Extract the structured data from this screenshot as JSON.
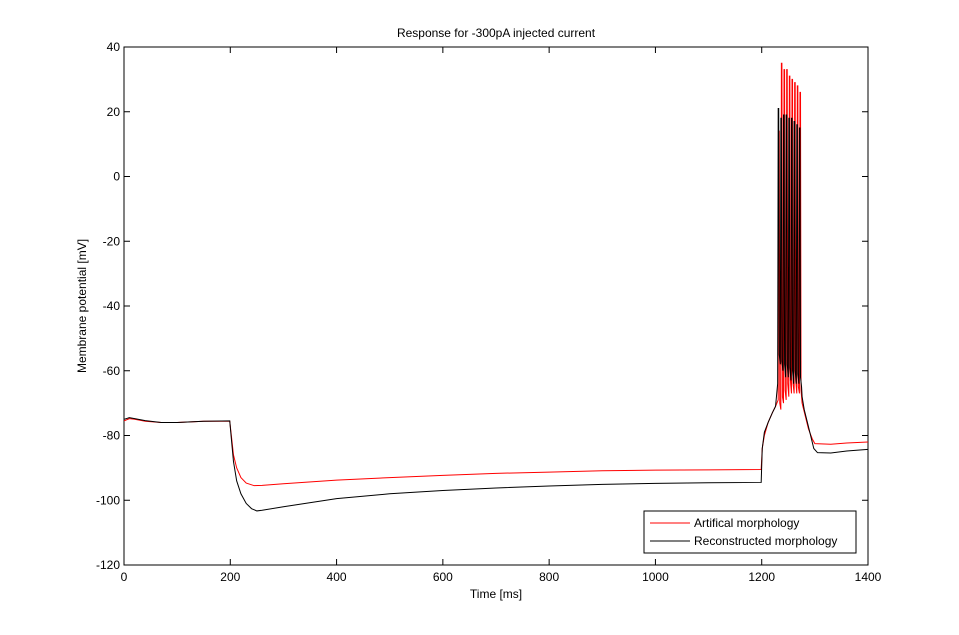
{
  "chart_data": {
    "type": "line",
    "title": "Response for -300pA injected current",
    "xlabel": "Time [ms]",
    "ylabel": "Membrane potential [mV]",
    "xlim": [
      0,
      1400
    ],
    "ylim": [
      -120,
      40
    ],
    "xticks": [
      0,
      200,
      400,
      600,
      800,
      1000,
      1200,
      1400
    ],
    "yticks": [
      -120,
      -100,
      -80,
      -60,
      -40,
      -20,
      0,
      20,
      40
    ],
    "grid": false,
    "legend_position": "bottom-right",
    "series": [
      {
        "name": "Artifical morphology",
        "color": "#ff0000",
        "points": [
          [
            0,
            -75.5
          ],
          [
            10,
            -74.8
          ],
          [
            20,
            -75.0
          ],
          [
            40,
            -75.6
          ],
          [
            70,
            -76.0
          ],
          [
            100,
            -76.0
          ],
          [
            150,
            -75.6
          ],
          [
            199,
            -75.6
          ],
          [
            202,
            -80
          ],
          [
            206,
            -86
          ],
          [
            212,
            -90
          ],
          [
            220,
            -93
          ],
          [
            230,
            -94.7
          ],
          [
            245,
            -95.5
          ],
          [
            260,
            -95.4
          ],
          [
            300,
            -94.9
          ],
          [
            400,
            -93.8
          ],
          [
            500,
            -93.0
          ],
          [
            600,
            -92.3
          ],
          [
            700,
            -91.7
          ],
          [
            800,
            -91.3
          ],
          [
            900,
            -90.9
          ],
          [
            1000,
            -90.7
          ],
          [
            1100,
            -90.6
          ],
          [
            1199,
            -90.5
          ],
          [
            1201,
            -84
          ],
          [
            1205,
            -80
          ],
          [
            1212,
            -76
          ],
          [
            1220,
            -73
          ],
          [
            1226,
            -71
          ],
          [
            1231,
            -69
          ],
          [
            1232,
            14
          ],
          [
            1233,
            14
          ],
          [
            1234,
            -70
          ],
          [
            1236,
            -72
          ],
          [
            1237,
            35
          ],
          [
            1238,
            35
          ],
          [
            1239,
            -68
          ],
          [
            1241,
            -70
          ],
          [
            1242,
            33
          ],
          [
            1243,
            33
          ],
          [
            1244,
            -66
          ],
          [
            1246,
            -69
          ],
          [
            1247,
            33
          ],
          [
            1248,
            33
          ],
          [
            1249,
            -64
          ],
          [
            1251,
            -68
          ],
          [
            1252,
            31
          ],
          [
            1253,
            31
          ],
          [
            1254,
            -63
          ],
          [
            1256,
            -67
          ],
          [
            1257,
            30
          ],
          [
            1258,
            30
          ],
          [
            1259,
            -64
          ],
          [
            1261,
            -67
          ],
          [
            1262,
            29
          ],
          [
            1263,
            29
          ],
          [
            1264,
            -63
          ],
          [
            1266,
            -67
          ],
          [
            1267,
            28
          ],
          [
            1268,
            28
          ],
          [
            1269,
            -65
          ],
          [
            1271,
            -67
          ],
          [
            1272,
            26
          ],
          [
            1273,
            26
          ],
          [
            1274,
            -66
          ],
          [
            1276,
            -70
          ],
          [
            1282,
            -74
          ],
          [
            1288,
            -78
          ],
          [
            1295,
            -81
          ],
          [
            1300,
            -82.5
          ],
          [
            1330,
            -82.7
          ],
          [
            1360,
            -82.3
          ],
          [
            1400,
            -82.0
          ]
        ]
      },
      {
        "name": "Reconstructed morphology",
        "color": "#000000",
        "points": [
          [
            0,
            -75.0
          ],
          [
            10,
            -74.5
          ],
          [
            20,
            -74.8
          ],
          [
            40,
            -75.4
          ],
          [
            70,
            -76.0
          ],
          [
            100,
            -76.0
          ],
          [
            150,
            -75.6
          ],
          [
            199,
            -75.5
          ],
          [
            202,
            -81
          ],
          [
            206,
            -88
          ],
          [
            212,
            -94
          ],
          [
            220,
            -98
          ],
          [
            230,
            -101
          ],
          [
            240,
            -102.6
          ],
          [
            250,
            -103.3
          ],
          [
            260,
            -103.1
          ],
          [
            300,
            -102.0
          ],
          [
            400,
            -99.5
          ],
          [
            500,
            -98.0
          ],
          [
            600,
            -97.0
          ],
          [
            700,
            -96.2
          ],
          [
            800,
            -95.6
          ],
          [
            900,
            -95.1
          ],
          [
            1000,
            -94.8
          ],
          [
            1100,
            -94.6
          ],
          [
            1199,
            -94.5
          ],
          [
            1201,
            -84
          ],
          [
            1205,
            -79
          ],
          [
            1212,
            -76
          ],
          [
            1220,
            -73
          ],
          [
            1226,
            -71
          ],
          [
            1230,
            -64
          ],
          [
            1231,
            21
          ],
          [
            1232,
            21
          ],
          [
            1233,
            -55
          ],
          [
            1235,
            -58
          ],
          [
            1236,
            18
          ],
          [
            1237,
            18
          ],
          [
            1238,
            -57
          ],
          [
            1240,
            -60
          ],
          [
            1241,
            19
          ],
          [
            1242,
            19
          ],
          [
            1243,
            -58
          ],
          [
            1245,
            -62
          ],
          [
            1246,
            19
          ],
          [
            1247,
            19
          ],
          [
            1248,
            -58
          ],
          [
            1250,
            -62
          ],
          [
            1251,
            18
          ],
          [
            1252,
            18
          ],
          [
            1253,
            -59
          ],
          [
            1255,
            -63
          ],
          [
            1256,
            18
          ],
          [
            1257,
            18
          ],
          [
            1258,
            -60
          ],
          [
            1260,
            -64
          ],
          [
            1261,
            17
          ],
          [
            1262,
            17
          ],
          [
            1263,
            -60
          ],
          [
            1265,
            -64
          ],
          [
            1266,
            16
          ],
          [
            1267,
            16
          ],
          [
            1268,
            -61
          ],
          [
            1270,
            -64
          ],
          [
            1271,
            15
          ],
          [
            1272,
            15
          ],
          [
            1273,
            -62
          ],
          [
            1275,
            -65
          ],
          [
            1276,
            -68
          ],
          [
            1280,
            -72
          ],
          [
            1286,
            -76
          ],
          [
            1292,
            -80
          ],
          [
            1298,
            -84
          ],
          [
            1305,
            -85.3
          ],
          [
            1330,
            -85.4
          ],
          [
            1360,
            -84.8
          ],
          [
            1400,
            -84.3
          ]
        ]
      }
    ]
  }
}
